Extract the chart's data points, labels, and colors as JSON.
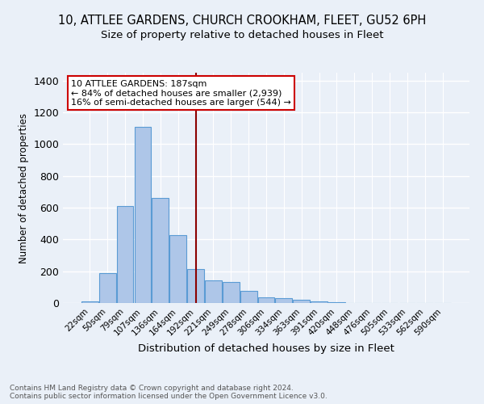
{
  "title1": "10, ATTLEE GARDENS, CHURCH CROOKHAM, FLEET, GU52 6PH",
  "title2": "Size of property relative to detached houses in Fleet",
  "xlabel": "Distribution of detached houses by size in Fleet",
  "ylabel": "Number of detached properties",
  "footnote1": "Contains HM Land Registry data © Crown copyright and database right 2024.",
  "footnote2": "Contains public sector information licensed under the Open Government Licence v3.0.",
  "bar_labels": [
    "22sqm",
    "50sqm",
    "79sqm",
    "107sqm",
    "136sqm",
    "164sqm",
    "192sqm",
    "221sqm",
    "249sqm",
    "278sqm",
    "306sqm",
    "334sqm",
    "363sqm",
    "391sqm",
    "420sqm",
    "448sqm",
    "476sqm",
    "505sqm",
    "533sqm",
    "562sqm",
    "590sqm"
  ],
  "bar_values": [
    10,
    190,
    610,
    1110,
    660,
    425,
    215,
    140,
    130,
    75,
    35,
    30,
    20,
    8,
    3,
    1,
    0,
    0,
    0,
    0,
    0
  ],
  "bar_color": "#aec6e8",
  "bar_edge_color": "#5a9bd4",
  "property_line_x": 6.0,
  "property_line_color": "#8b0000",
  "ylim": [
    0,
    1450
  ],
  "yticks": [
    0,
    200,
    400,
    600,
    800,
    1000,
    1200,
    1400
  ],
  "annotation_text": "10 ATTLEE GARDENS: 187sqm\n← 84% of detached houses are smaller (2,939)\n16% of semi-detached houses are larger (544) →",
  "annotation_box_color": "#ffffff",
  "annotation_box_edge": "#cc0000",
  "bg_color": "#eaf0f8",
  "grid_color": "#ffffff",
  "title1_fontsize": 10.5,
  "title2_fontsize": 9.5
}
